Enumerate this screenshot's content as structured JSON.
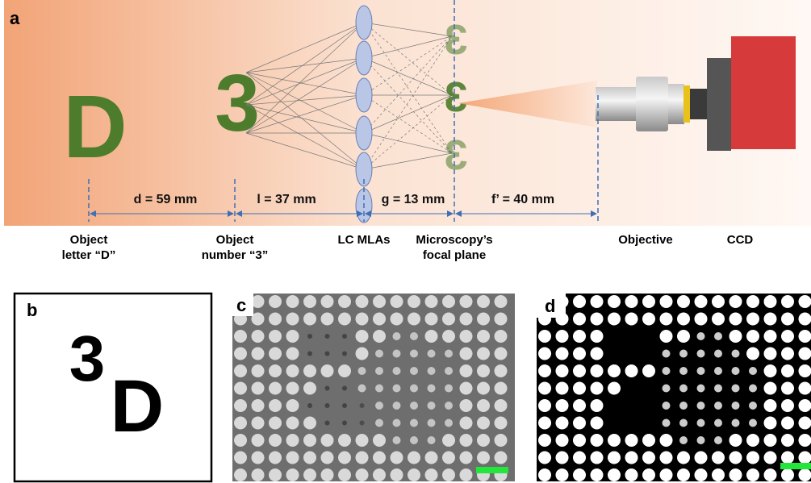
{
  "panel_a": {
    "label": "a",
    "objects": [
      {
        "glyph": "D"
      },
      {
        "glyph": "3"
      }
    ],
    "distances": [
      "d = 59 mm",
      "l = 37 mm",
      "g = 13 mm",
      "f’ = 40 mm"
    ],
    "components": [
      [
        "Object",
        "letter “D”"
      ],
      [
        "Object",
        "number “3”"
      ],
      [
        "LC MLAs"
      ],
      [
        "Microscopy’s",
        "focal plane"
      ],
      [
        "Objective"
      ],
      [
        "CCD"
      ]
    ]
  },
  "panel_b": {
    "label": "b",
    "glyphs": [
      "3",
      "D"
    ]
  },
  "panel_c": {
    "label": "c"
  },
  "panel_d": {
    "label": "d"
  }
}
